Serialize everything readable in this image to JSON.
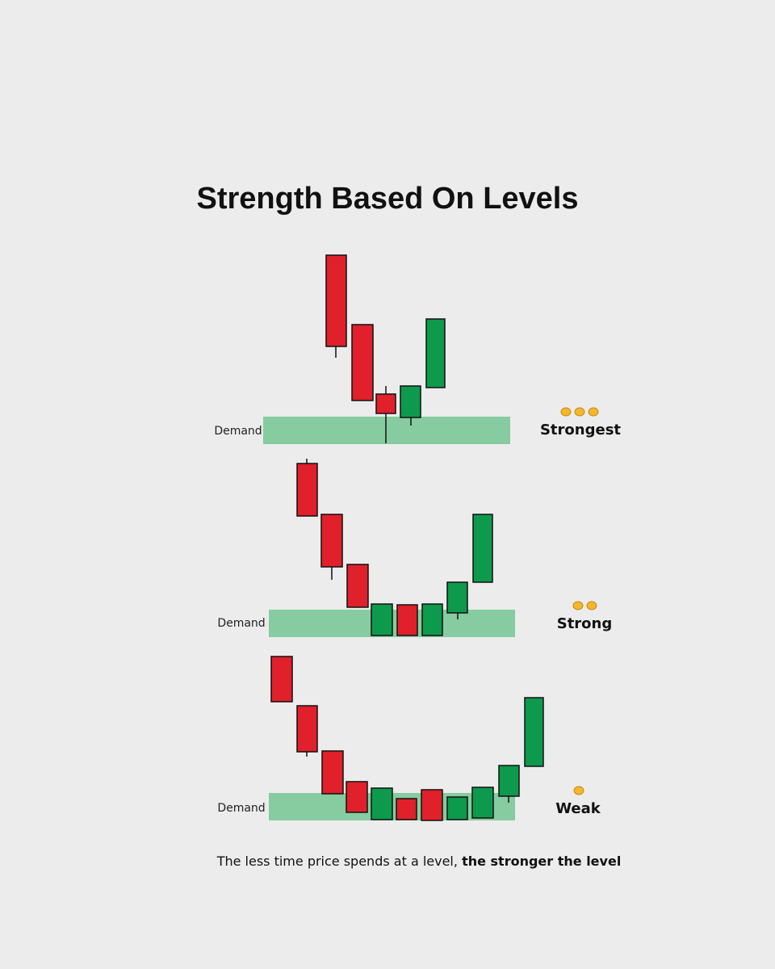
{
  "title": "Strength Based On Levels",
  "panels": [
    {
      "zone_label": "Demand",
      "strength": "Strongest"
    },
    {
      "zone_label": "Demand",
      "strength": "Strong"
    },
    {
      "zone_label": "Demand",
      "strength": "Weak"
    }
  ],
  "caption": {
    "text": "The less time price spends at a level,",
    "emphasis": "the stronger the level"
  }
}
